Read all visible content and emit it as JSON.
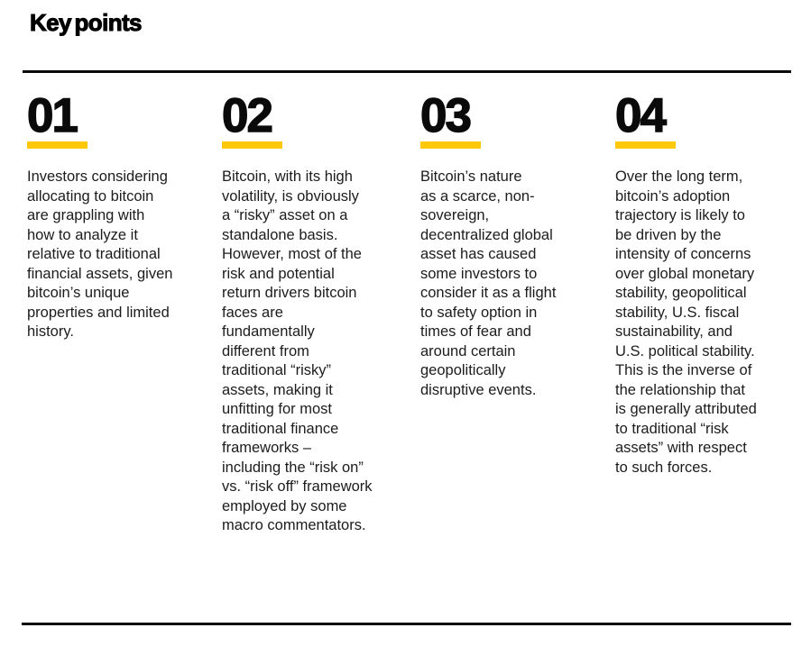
{
  "page": {
    "title": "Key points",
    "background_color": "#ffffff",
    "rule_color": "#0a0a0a",
    "accent_color": "#FFC80A",
    "text_color": "#1c1c1c"
  },
  "key_points": [
    {
      "number": "01",
      "text": "Investors considering\nallocating to bitcoin\nare grappling with\nhow to analyze it\nrelative to traditional\nfinancial assets, given\nbitcoin’s unique\nproperties and limited\nhistory."
    },
    {
      "number": "02",
      "text": "Bitcoin, with its high\nvolatility, is obviously\na “risky” asset on a\nstandalone basis.\nHowever, most of the\nrisk and potential\nreturn drivers bitcoin\nfaces are\nfundamentally\ndifferent from\ntraditional “risky”\nassets, making it\nunfitting for most\ntraditional finance\nframeworks –\nincluding the “risk on”\nvs. “risk off” framework\nemployed by some\nmacro commentators."
    },
    {
      "number": "03",
      "text": "Bitcoin’s nature\nas a scarce, non-\nsovereign,\ndecentralized global\nasset has caused\nsome investors to\nconsider it as a flight\nto safety option in\ntimes of fear and\naround certain\ngeopolitically\ndisruptive events."
    },
    {
      "number": "04",
      "text": "Over the long term,\nbitcoin’s adoption\ntrajectory is likely to\nbe driven by the\nintensity of concerns\nover global monetary\nstability, geopolitical\nstability, U.S. fiscal\nsustainability, and\nU.S. political stability.\nThis is the inverse of\nthe relationship that\nis generally attributed\nto traditional “risk\nassets” with respect\nto such forces."
    }
  ]
}
